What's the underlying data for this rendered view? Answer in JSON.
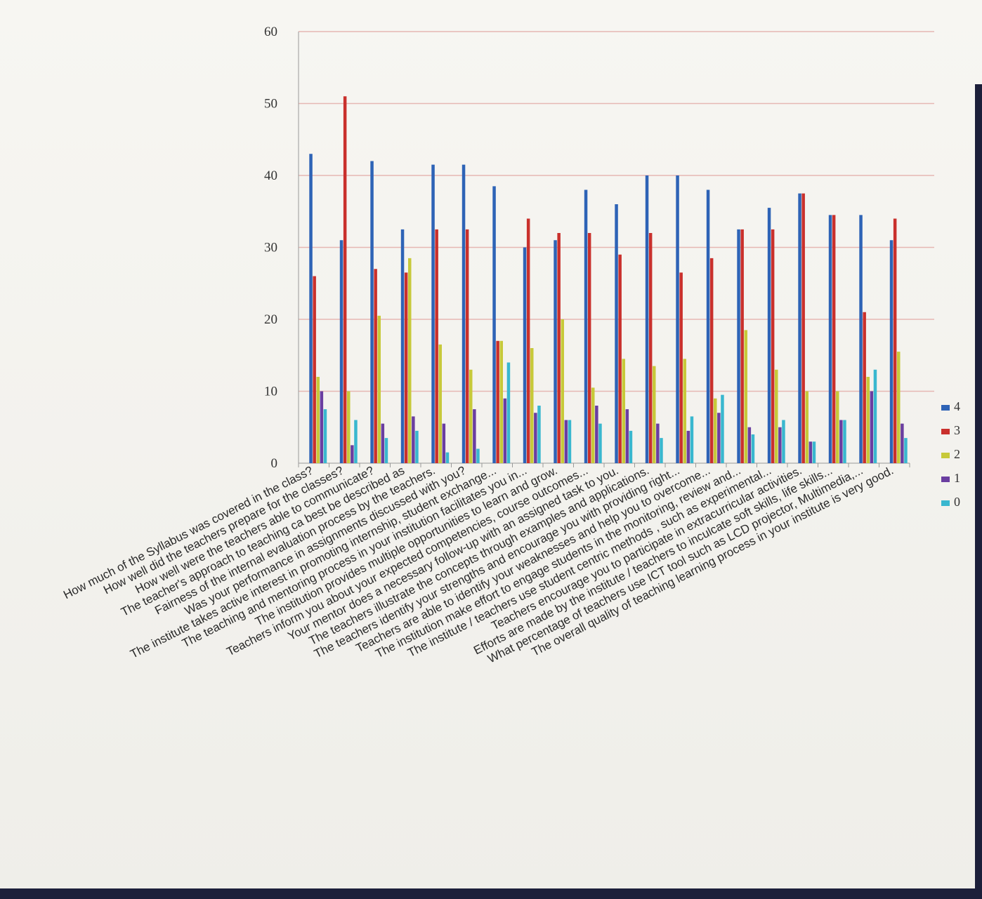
{
  "chart_data": {
    "type": "bar",
    "ylim": [
      0,
      60
    ],
    "yticks": [
      0,
      10,
      20,
      30,
      40,
      50,
      60
    ],
    "legend_position": "right",
    "categories": [
      "How much of the Syllabus was covered in the class?",
      "How well did the teachers prepare for the classes?",
      "How well were the teachers able to communicate?",
      "The teacher's approach to teaching ca best be described as",
      "Fairness of the internal evaluation process by the teachers.",
      "Was your performance in assignments discussed with you?",
      "The institute takes active interest in promoting internship, student exchange...",
      "The teaching and mentoring process in your institution facilitates you in...",
      "The institution provides multiple opportunities to learn and grow.",
      "Teachers inform you about your expected competencies, course outcomes...",
      "Your mentor does a necessary follow-up with an assigned task to you.",
      "The teachers illustrate the concepts through examples and applications.",
      "The teachers identify your strengths and encourage you with providing right...",
      "Teachers are able to identify your weaknesses and help you to overcome...",
      "The institution make effort to engage students in the monitoring, review and...",
      "The institute / teachers use student centric methods , such as experimental...",
      "Teachers encourage you to participate in extracurricular activities.",
      "Efforts are made by the institute / teachers to inculcate soft skills, life skills...",
      "What percentage of teachers use ICT tool such as LCD projector, Multimedia,...",
      "The overall quality of teaching learning process in your institute is very good."
    ],
    "series": [
      {
        "name": "4",
        "color": "#2e63b6",
        "values": [
          43,
          31,
          42,
          32.5,
          41.5,
          41.5,
          38.5,
          30,
          31,
          38,
          36,
          40,
          40,
          38,
          32.5,
          35.5,
          37.5,
          34.5,
          34.5,
          31
        ]
      },
      {
        "name": "3",
        "color": "#c9302c",
        "values": [
          26,
          51,
          27,
          26.5,
          32.5,
          32.5,
          17,
          34,
          32,
          32,
          29,
          32,
          26.5,
          28.5,
          32.5,
          32.5,
          37.5,
          34.5,
          21,
          34
        ]
      },
      {
        "name": "2",
        "color": "#c7c93a",
        "values": [
          12,
          10,
          20.5,
          28.5,
          16.5,
          13,
          17,
          16,
          20,
          10.5,
          14.5,
          13.5,
          14.5,
          9,
          18.5,
          13,
          10,
          10,
          12,
          15.5
        ]
      },
      {
        "name": "1",
        "color": "#6a3ea0",
        "values": [
          10,
          2.5,
          5.5,
          6.5,
          5.5,
          7.5,
          9,
          7,
          6,
          8,
          7.5,
          5.5,
          4.5,
          7,
          5,
          5,
          3,
          6,
          10,
          5.5
        ]
      },
      {
        "name": "0",
        "color": "#39b7cf",
        "values": [
          7.5,
          6,
          3.5,
          4.5,
          1.5,
          2,
          14,
          8,
          6,
          5.5,
          4.5,
          3.5,
          6.5,
          9.5,
          4,
          6,
          3,
          6,
          13,
          3.5
        ]
      }
    ]
  }
}
